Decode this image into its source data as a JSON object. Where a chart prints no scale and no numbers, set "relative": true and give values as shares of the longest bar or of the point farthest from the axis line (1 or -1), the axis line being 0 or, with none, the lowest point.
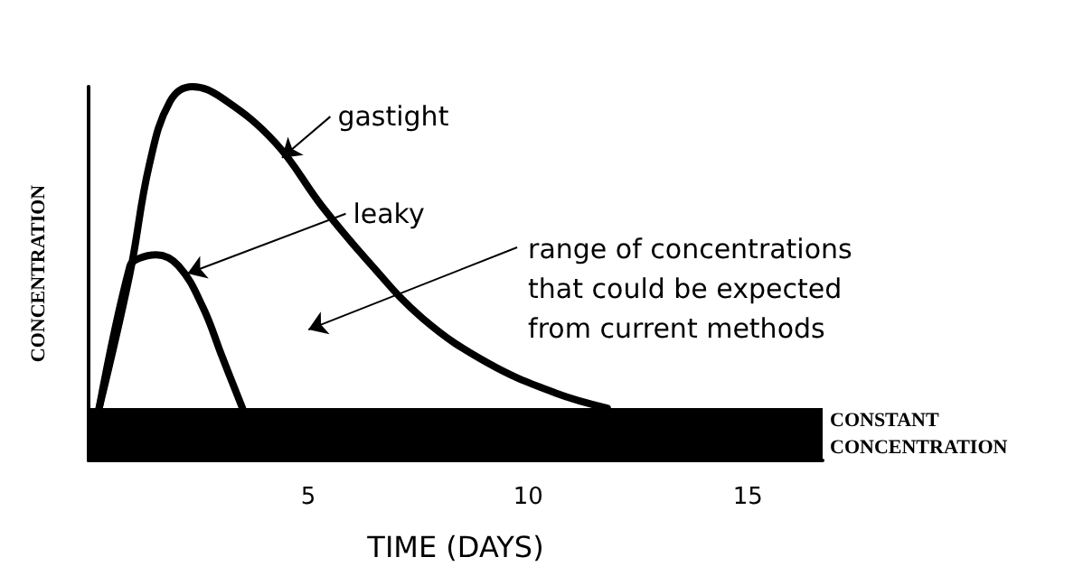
{
  "chart_data": {
    "type": "line",
    "relative": true,
    "xlabel": "TIME (DAYS)",
    "ylabel": "CONCENTRATION",
    "xlim": [
      0,
      16.7
    ],
    "xticks": [
      5,
      10,
      15
    ],
    "grid": false,
    "legend": false,
    "marker": "none",
    "line_style": "solid",
    "series": [
      {
        "name": "gastight",
        "color": "#000000",
        "x": [
          0.24,
          0.94,
          1.38,
          1.85,
          2.36,
          3.03,
          4.25,
          5.31,
          6.38,
          7.6,
          9.09,
          10.63,
          11.8
        ],
        "values": [
          0.14,
          0.5,
          0.79,
          0.96,
          1.0,
          0.97,
          0.85,
          0.68,
          0.53,
          0.38,
          0.26,
          0.18,
          0.14
        ]
      },
      {
        "name": "leaky",
        "color": "#000000",
        "x": [
          0.24,
          0.94,
          1.14,
          1.54,
          2.05,
          2.6,
          3.03,
          3.5
        ],
        "values": [
          0.14,
          0.52,
          0.54,
          0.55,
          0.52,
          0.41,
          0.28,
          0.14
        ]
      }
    ],
    "bands": [
      {
        "axis": "y",
        "from": 0,
        "to": 0.14,
        "label": "CONSTANT\nCONCENTRATION",
        "color": "#000000"
      }
    ],
    "annotations": [
      "range of concentrations\nthat could be expected\nfrom current methods"
    ]
  }
}
